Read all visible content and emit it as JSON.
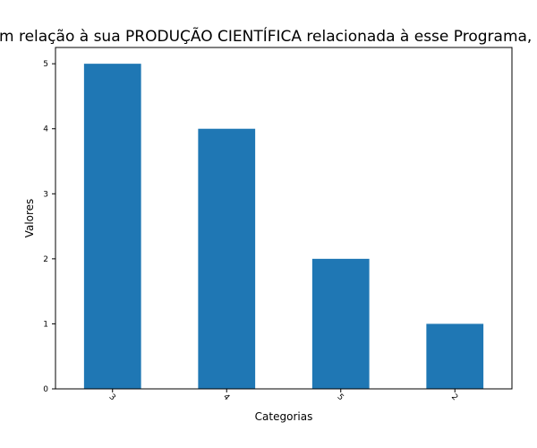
{
  "chart_data": {
    "type": "bar",
    "title": "Em relação à sua PRODUÇÃO CIENTÍFICA relacionada à esse Programa, você:",
    "xlabel": "Categorias",
    "ylabel": "Valores",
    "categories": [
      "3",
      "4",
      "5",
      "2"
    ],
    "values": [
      5,
      4,
      2,
      1
    ],
    "ylim": [
      0,
      5.25
    ],
    "yticks": [
      0,
      1,
      2,
      3,
      4,
      5
    ],
    "bar_color": "#1f77b4",
    "grid": false,
    "legend": "none"
  }
}
